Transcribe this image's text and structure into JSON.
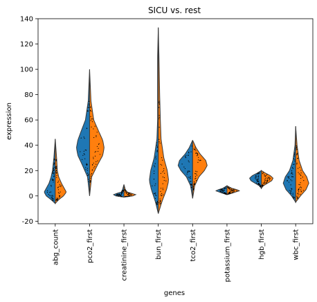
{
  "chart_data": {
    "type": "violin",
    "title": "SICU vs. rest",
    "xlabel": "genes",
    "ylabel": "expression",
    "ylim": [
      -22,
      140
    ],
    "y_ticks": [
      -20,
      0,
      20,
      40,
      60,
      80,
      100,
      120,
      140
    ],
    "categories": [
      "abg_count",
      "pco2_first",
      "creatinine_first",
      "bun_first",
      "tco2_first",
      "potassium_first",
      "hgb_first",
      "wbc_first"
    ],
    "split_violin": true,
    "legend": "none",
    "grid": false,
    "series": [
      {
        "color": "#1f77b4"
      },
      {
        "color": "#ff7f0e"
      }
    ],
    "violins": [
      {
        "range": [
          -6,
          45
        ],
        "left": [
          [
            -6,
            0
          ],
          [
            -3,
            6
          ],
          [
            0,
            13
          ],
          [
            3,
            16
          ],
          [
            6,
            13
          ],
          [
            10,
            9
          ],
          [
            15,
            6
          ],
          [
            20,
            4
          ],
          [
            30,
            2
          ],
          [
            45,
            0
          ]
        ],
        "right": [
          [
            -6,
            0
          ],
          [
            -3,
            5
          ],
          [
            0,
            12
          ],
          [
            3,
            16
          ],
          [
            6,
            13
          ],
          [
            10,
            9
          ],
          [
            15,
            5
          ],
          [
            20,
            3
          ],
          [
            30,
            2
          ],
          [
            45,
            0
          ]
        ]
      },
      {
        "range": [
          0,
          100
        ],
        "left": [
          [
            0,
            0
          ],
          [
            15,
            3
          ],
          [
            25,
            11
          ],
          [
            32,
            17
          ],
          [
            38,
            19
          ],
          [
            44,
            17
          ],
          [
            50,
            13
          ],
          [
            60,
            6
          ],
          [
            75,
            2
          ],
          [
            100,
            0
          ]
        ],
        "right": [
          [
            0,
            0
          ],
          [
            15,
            3
          ],
          [
            25,
            12
          ],
          [
            32,
            19
          ],
          [
            38,
            21
          ],
          [
            44,
            19
          ],
          [
            50,
            14
          ],
          [
            60,
            6
          ],
          [
            75,
            2
          ],
          [
            100,
            0
          ]
        ]
      },
      {
        "range": [
          -1,
          9
        ],
        "left": [
          [
            -1,
            0
          ],
          [
            0,
            12
          ],
          [
            1,
            15
          ],
          [
            2,
            10
          ],
          [
            3,
            4
          ],
          [
            5,
            2
          ],
          [
            9,
            0
          ]
        ],
        "right": [
          [
            -1,
            0
          ],
          [
            0,
            13
          ],
          [
            1,
            17
          ],
          [
            2,
            11
          ],
          [
            3,
            5
          ],
          [
            5,
            2
          ],
          [
            9,
            0
          ]
        ]
      },
      {
        "range": [
          -14,
          133
        ],
        "left": [
          [
            -14,
            0
          ],
          [
            -5,
            4
          ],
          [
            5,
            10
          ],
          [
            12,
            13
          ],
          [
            20,
            11
          ],
          [
            30,
            6
          ],
          [
            45,
            2
          ],
          [
            60,
            1
          ],
          [
            80,
            1
          ],
          [
            110,
            1
          ],
          [
            133,
            0
          ]
        ],
        "right": [
          [
            -14,
            0
          ],
          [
            -5,
            5
          ],
          [
            5,
            12
          ],
          [
            12,
            15
          ],
          [
            20,
            13
          ],
          [
            30,
            8
          ],
          [
            45,
            4
          ],
          [
            60,
            3
          ],
          [
            80,
            2
          ],
          [
            110,
            1
          ],
          [
            133,
            0
          ]
        ]
      },
      {
        "range": [
          -2,
          44
        ],
        "left": [
          [
            -2,
            0
          ],
          [
            8,
            3
          ],
          [
            15,
            9
          ],
          [
            20,
            17
          ],
          [
            24,
            21
          ],
          [
            28,
            19
          ],
          [
            33,
            11
          ],
          [
            38,
            5
          ],
          [
            44,
            0
          ]
        ],
        "right": [
          [
            -2,
            0
          ],
          [
            8,
            3
          ],
          [
            15,
            9
          ],
          [
            20,
            17
          ],
          [
            24,
            21
          ],
          [
            28,
            19
          ],
          [
            33,
            11
          ],
          [
            38,
            5
          ],
          [
            44,
            0
          ]
        ]
      },
      {
        "range": [
          1,
          8
        ],
        "left": [
          [
            1,
            0
          ],
          [
            2,
            6
          ],
          [
            3,
            11
          ],
          [
            4,
            16
          ],
          [
            5,
            12
          ],
          [
            6,
            6
          ],
          [
            8,
            0
          ]
        ],
        "right": [
          [
            1,
            0
          ],
          [
            2,
            7
          ],
          [
            3,
            12
          ],
          [
            4,
            18
          ],
          [
            5,
            14
          ],
          [
            6,
            7
          ],
          [
            8,
            0
          ]
        ]
      },
      {
        "range": [
          6,
          20
        ],
        "left": [
          [
            6,
            0
          ],
          [
            8,
            3
          ],
          [
            10,
            9
          ],
          [
            12,
            15
          ],
          [
            14,
            17
          ],
          [
            16,
            13
          ],
          [
            18,
            6
          ],
          [
            20,
            0
          ]
        ],
        "right": [
          [
            6,
            0
          ],
          [
            8,
            3
          ],
          [
            10,
            9
          ],
          [
            12,
            15
          ],
          [
            14,
            17
          ],
          [
            16,
            13
          ],
          [
            18,
            6
          ],
          [
            20,
            0
          ]
        ]
      },
      {
        "range": [
          -5,
          55
        ],
        "left": [
          [
            -5,
            0
          ],
          [
            0,
            6
          ],
          [
            5,
            14
          ],
          [
            10,
            18
          ],
          [
            15,
            15
          ],
          [
            20,
            9
          ],
          [
            28,
            4
          ],
          [
            40,
            1
          ],
          [
            55,
            0
          ]
        ],
        "right": [
          [
            -5,
            0
          ],
          [
            0,
            7
          ],
          [
            5,
            15
          ],
          [
            10,
            19
          ],
          [
            15,
            16
          ],
          [
            20,
            10
          ],
          [
            28,
            5
          ],
          [
            40,
            2
          ],
          [
            55,
            0
          ]
        ]
      }
    ]
  }
}
